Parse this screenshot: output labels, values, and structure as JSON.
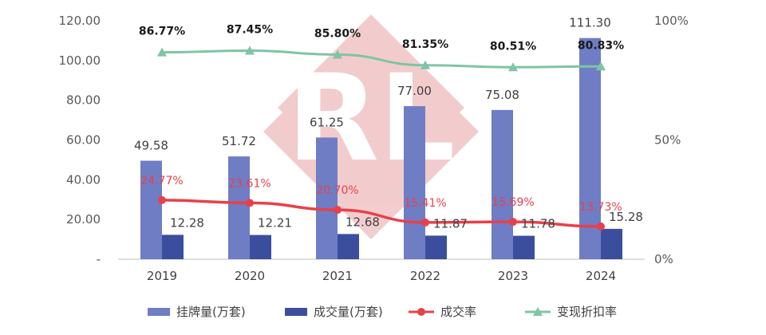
{
  "chart_data": {
    "type": "bar",
    "categories": [
      "2019",
      "2020",
      "2021",
      "2022",
      "2023",
      "2024"
    ],
    "y_left": {
      "ylim": [
        0,
        120
      ],
      "ticks": [
        "-",
        "20.00",
        "40.00",
        "60.00",
        "80.00",
        "100.00",
        "120.00"
      ],
      "tick_values": [
        0,
        20,
        40,
        60,
        80,
        100,
        120
      ]
    },
    "y_right": {
      "ylim": [
        0,
        100
      ],
      "ticks": [
        "0%",
        "50%",
        "100%"
      ],
      "tick_values": [
        0,
        50,
        100
      ]
    },
    "series": [
      {
        "name": "挂牌量(万套)",
        "kind": "bar",
        "axis": "left",
        "color": "#6f7dc4",
        "values": [
          49.58,
          51.72,
          61.25,
          77.0,
          75.08,
          111.3
        ],
        "labels": [
          "49.58",
          "51.72",
          "61.25",
          "77.00",
          "75.08",
          "111.30"
        ]
      },
      {
        "name": "成交量(万套)",
        "kind": "bar",
        "axis": "left",
        "color": "#3b4e9e",
        "values": [
          12.28,
          12.21,
          12.68,
          11.87,
          11.78,
          15.28
        ],
        "labels": [
          "12.28",
          "12.21",
          "12.68",
          "11.87",
          "11.78",
          "15.28"
        ]
      },
      {
        "name": "成交率",
        "kind": "line",
        "axis": "right",
        "color": "#e8404a",
        "values": [
          24.77,
          23.61,
          20.7,
          15.41,
          15.69,
          13.73
        ],
        "labels": [
          "24.77%",
          "23.61%",
          "20.70%",
          "15.41%",
          "15.69%",
          "13.73%"
        ]
      },
      {
        "name": "变现折扣率",
        "kind": "line",
        "axis": "right",
        "color": "#7fc4a6",
        "values": [
          86.77,
          87.45,
          85.8,
          81.35,
          80.51,
          80.83
        ],
        "labels": [
          "86.77%",
          "87.45%",
          "85.80%",
          "81.35%",
          "80.51%",
          "80.83%"
        ]
      }
    ],
    "legend_position": "bottom",
    "grid": false,
    "watermark": {
      "text": "RL",
      "color": "#e8a4a6"
    }
  }
}
